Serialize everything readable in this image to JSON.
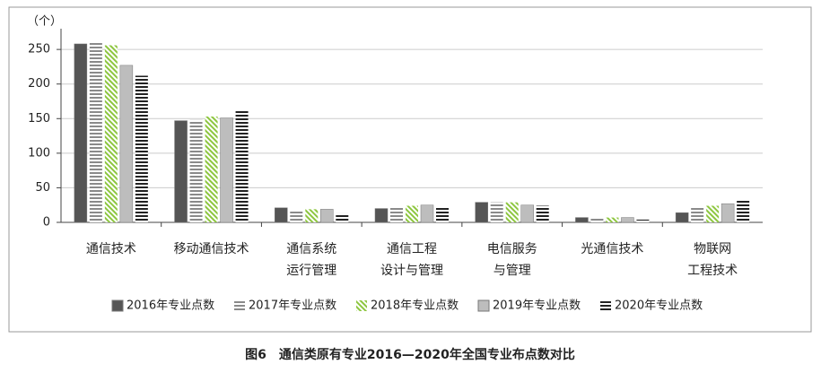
{
  "chart_data": {
    "type": "bar",
    "title": "图6　通信类原有专业2016—2020年全国专业布点数对比",
    "y_label": "（个）",
    "categories": [
      "通信技术",
      "移动通信技术",
      "通信系统\n运行管理",
      "通信工程\n设计与管理",
      "电信服务\n与管理",
      "光通信技术",
      "物联网\n工程技术"
    ],
    "series": [
      {
        "name": "2016年专业点数",
        "color": "#555555",
        "fill_style": "solid",
        "values": [
          258,
          147,
          21,
          20,
          29,
          7,
          14
        ]
      },
      {
        "name": "2017年专业点数",
        "color": "#8a8a8a",
        "fill_style": "horizontal-stripes",
        "values": [
          260,
          148,
          18,
          23,
          29,
          7,
          22
        ]
      },
      {
        "name": "2018年专业点数",
        "color": "#8dc63f",
        "fill_style": "diagonal-stripes",
        "values": [
          256,
          153,
          19,
          24,
          29,
          7,
          24
        ]
      },
      {
        "name": "2019年专业点数",
        "color": "#bdbdbd",
        "fill_style": "solid",
        "values": [
          227,
          151,
          19,
          25,
          25,
          7,
          27
        ]
      },
      {
        "name": "2020年专业点数",
        "color": "#222222",
        "fill_style": "horizontal-stripes",
        "values": [
          212,
          161,
          13,
          22,
          24,
          4,
          33
        ]
      }
    ],
    "ylim": [
      0,
      280
    ],
    "yticks": [
      0,
      50,
      100,
      150,
      200,
      250
    ],
    "grid": true,
    "legend": "bottom"
  }
}
